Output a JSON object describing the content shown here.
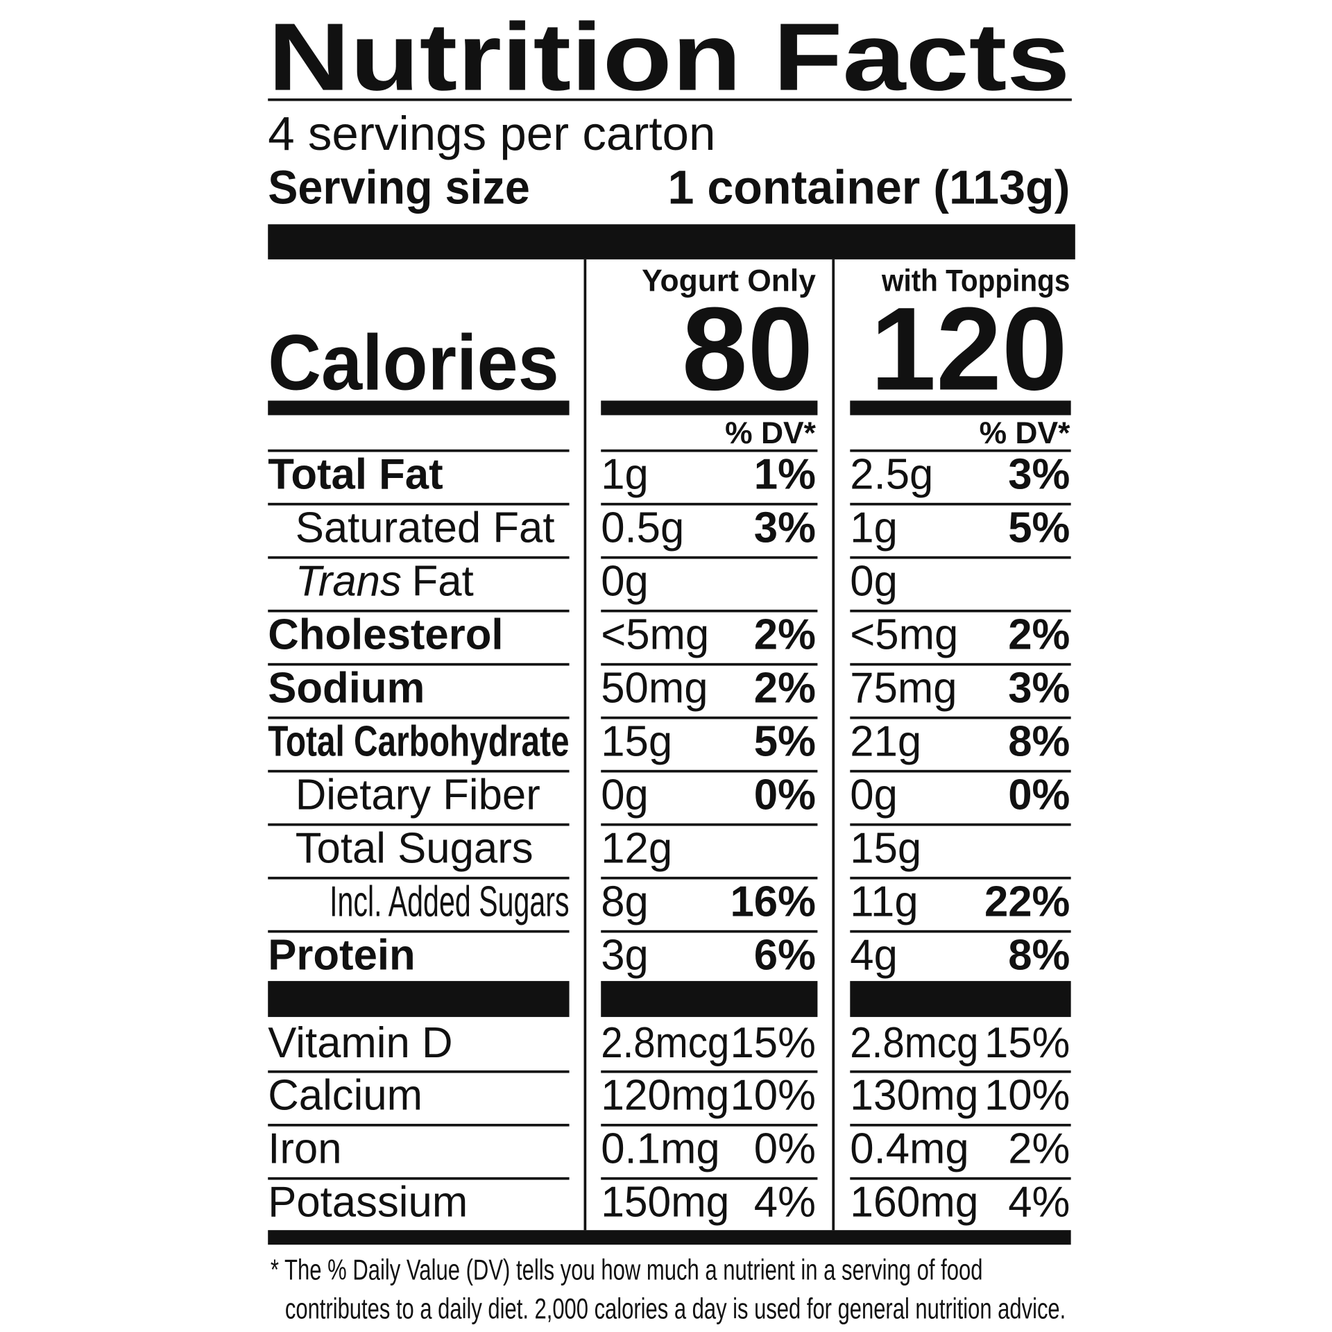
{
  "header": {
    "title": "Nutrition Facts",
    "servings": "4 servings per carton",
    "serving_size_label": "Serving size",
    "serving_size_value": "1 container (113g)"
  },
  "calories": {
    "label": "Calories",
    "columns": [
      {
        "heading": "Yogurt Only",
        "value": "80",
        "dv_heading": "% DV*"
      },
      {
        "heading": "with Toppings",
        "value": "120",
        "dv_heading": "% DV*"
      }
    ]
  },
  "nutrients": [
    {
      "name": "Total Fat",
      "style": "bold",
      "columns": [
        {
          "amount": "1g",
          "dv": "1%"
        },
        {
          "amount": "2.5g",
          "dv": "3%"
        }
      ]
    },
    {
      "name": "Saturated Fat",
      "style": "indent",
      "columns": [
        {
          "amount": "0.5g",
          "dv": "3%"
        },
        {
          "amount": "1g",
          "dv": "5%"
        }
      ]
    },
    {
      "name_italic": "Trans",
      "name": "Fat",
      "style": "indent",
      "columns": [
        {
          "amount": "0g"
        },
        {
          "amount": "0g"
        }
      ]
    },
    {
      "name": "Cholesterol",
      "style": "bold",
      "columns": [
        {
          "amount": "<5mg",
          "dv": "2%"
        },
        {
          "amount": "<5mg",
          "dv": "2%"
        }
      ]
    },
    {
      "name": "Sodium",
      "style": "bold",
      "columns": [
        {
          "amount": "50mg",
          "dv": "2%"
        },
        {
          "amount": "75mg",
          "dv": "3%"
        }
      ]
    },
    {
      "name": "Total Carbohydrate",
      "style": "bold",
      "columns": [
        {
          "amount": "15g",
          "dv": "5%"
        },
        {
          "amount": "21g",
          "dv": "8%"
        }
      ]
    },
    {
      "name": "Dietary Fiber",
      "style": "indent",
      "columns": [
        {
          "amount": "0g",
          "dv": "0%"
        },
        {
          "amount": "0g",
          "dv": "0%"
        }
      ]
    },
    {
      "name": "Total Sugars",
      "style": "indent",
      "columns": [
        {
          "amount": "12g"
        },
        {
          "amount": "15g"
        }
      ]
    },
    {
      "name": "Incl. Added Sugars",
      "style": "indent2",
      "columns": [
        {
          "amount": "8g",
          "dv": "16%"
        },
        {
          "amount": "11g",
          "dv": "22%"
        }
      ]
    },
    {
      "name": "Protein",
      "style": "bold",
      "columns": [
        {
          "amount": "3g",
          "dv": "6%"
        },
        {
          "amount": "4g",
          "dv": "8%"
        }
      ]
    }
  ],
  "vitamins": [
    {
      "name": "Vitamin D",
      "columns": [
        {
          "amount": "2.8mcg",
          "dv": "15%"
        },
        {
          "amount": "2.8mcg",
          "dv": "15%"
        }
      ]
    },
    {
      "name": "Calcium",
      "columns": [
        {
          "amount": "120mg",
          "dv": "10%"
        },
        {
          "amount": "130mg",
          "dv": "10%"
        }
      ]
    },
    {
      "name": "Iron",
      "columns": [
        {
          "amount": "0.1mg",
          "dv": "0%"
        },
        {
          "amount": "0.4mg",
          "dv": "2%"
        }
      ]
    },
    {
      "name": "Potassium",
      "columns": [
        {
          "amount": "150mg",
          "dv": "4%"
        },
        {
          "amount": "160mg",
          "dv": "4%"
        }
      ]
    }
  ],
  "footnote": [
    "* The % Daily Value (DV) tells you how much a nutrient in a serving of food",
    "contributes to a daily diet. 2,000 calories a day is used for general nutrition advice."
  ]
}
